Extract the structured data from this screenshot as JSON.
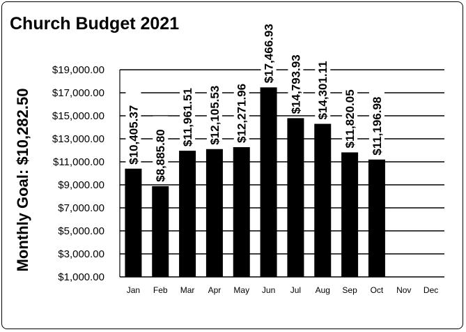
{
  "chart_data": {
    "type": "bar",
    "title": "Church Budget 2021",
    "ylabel": "Monthly Goal:  $10,282.50",
    "xlabel": "",
    "categories": [
      "Jan",
      "Feb",
      "Mar",
      "Apr",
      "May",
      "Jun",
      "Jul",
      "Aug",
      "Sep",
      "Oct",
      "Nov",
      "Dec"
    ],
    "values": [
      10405.37,
      8885.8,
      11961.51,
      12105.53,
      12271.96,
      17466.93,
      14793.93,
      14301.11,
      11820.05,
      11196.98,
      null,
      null
    ],
    "data_labels": [
      "$10,405.37",
      "$8,885.80",
      "$11,961.51",
      "$12,105.53",
      "$12,271.96",
      "$17,466.93",
      "$14,793.93",
      "$14,301.11",
      "$11,820.05",
      "$11,196.98",
      "",
      ""
    ],
    "yticks": [
      1000,
      3000,
      5000,
      7000,
      9000,
      11000,
      13000,
      15000,
      17000,
      19000
    ],
    "ytick_labels": [
      "$1,000.00",
      "$3,000.00",
      "$5,000.00",
      "$7,000.00",
      "$9,000.00",
      "$11,000.00",
      "$13,000.00",
      "$15,000.00",
      "$17,000.00",
      "$19,000.00"
    ],
    "ylim": [
      1000,
      19000
    ],
    "grid": true,
    "legend": "none",
    "bar_color": "#000000"
  }
}
